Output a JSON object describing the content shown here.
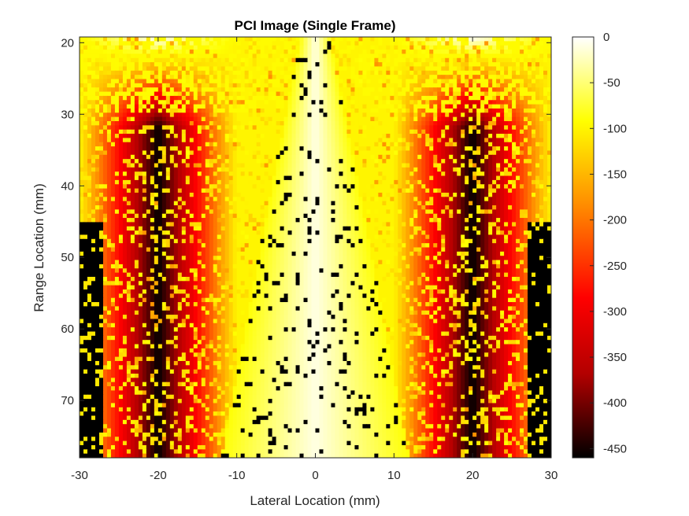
{
  "chart_data": {
    "type": "heatmap",
    "title": "PCI Image (Single Frame)",
    "xlabel": "Lateral Location (mm)",
    "ylabel": "Range Location (mm)",
    "xlim": [
      -30,
      30
    ],
    "ylim": [
      19.2,
      78
    ],
    "y_direction": "reversed",
    "x_ticks": [
      {
        "value": -30,
        "label": "-30"
      },
      {
        "value": -20,
        "label": "-20"
      },
      {
        "value": -10,
        "label": "-10"
      },
      {
        "value": 0,
        "label": "0"
      },
      {
        "value": 10,
        "label": "10"
      },
      {
        "value": 20,
        "label": "20"
      },
      {
        "value": 30,
        "label": "30"
      }
    ],
    "y_ticks": [
      {
        "value": 20,
        "label": "20"
      },
      {
        "value": 30,
        "label": "30"
      },
      {
        "value": 40,
        "label": "40"
      },
      {
        "value": 50,
        "label": "50"
      },
      {
        "value": 60,
        "label": "60"
      },
      {
        "value": 70,
        "label": "70"
      }
    ],
    "colorbar": {
      "colormap": "hot",
      "clim": [
        -460,
        0
      ],
      "ticks": [
        {
          "value": 0,
          "label": "0"
        },
        {
          "value": -50,
          "label": "-50"
        },
        {
          "value": -100,
          "label": "-100"
        },
        {
          "value": -150,
          "label": "-150"
        },
        {
          "value": -200,
          "label": "-200"
        },
        {
          "value": -250,
          "label": "-250"
        },
        {
          "value": -300,
          "label": "-300"
        },
        {
          "value": -350,
          "label": "-350"
        },
        {
          "value": -400,
          "label": "-400"
        },
        {
          "value": -450,
          "label": "-450"
        }
      ],
      "colors": [
        "#000000",
        "#b30000",
        "#ff0000",
        "#ff8c00",
        "#ffff00",
        "#ffffff"
      ]
    },
    "grid": false,
    "field_description": {
      "bright_cone_apex": {
        "x": 0,
        "y": 20
      },
      "bright_cone_halfwidth_at_bottom": 10,
      "dark_regions_x": [
        -20,
        20
      ],
      "values_range": [
        -460,
        0
      ]
    }
  }
}
